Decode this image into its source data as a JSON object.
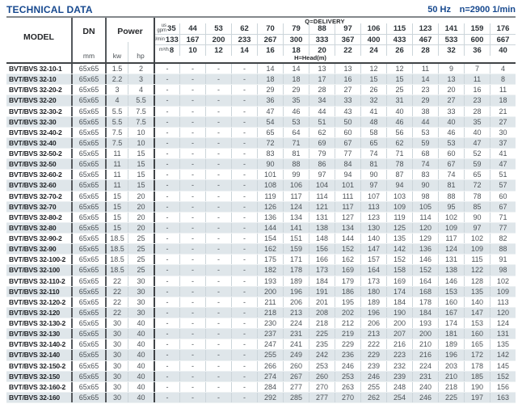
{
  "header_bar": {
    "title": "TECHNICAL DATA",
    "frequency": "50 Hz",
    "speed": "n=2900 1/min"
  },
  "table": {
    "columns": {
      "model": "MODEL",
      "dn": "DN",
      "dn_unit": "mm",
      "power": "Power",
      "kw": "kw",
      "hp": "hp"
    },
    "delivery_label": "Q=DELIVERY",
    "head_label": "H=Head(m)",
    "flow_rows": [
      {
        "unit_lines": [
          "us",
          "gpm"
        ],
        "values": [
          "35",
          "44",
          "53",
          "62",
          "70",
          "79",
          "88",
          "97",
          "106",
          "115",
          "123",
          "141",
          "159",
          "176"
        ]
      },
      {
        "unit_lines": [
          "l/min"
        ],
        "values": [
          "133",
          "167",
          "200",
          "233",
          "267",
          "300",
          "333",
          "367",
          "400",
          "433",
          "467",
          "533",
          "600",
          "667"
        ]
      },
      {
        "unit_lines": [
          "m³/h"
        ],
        "values": [
          "8",
          "10",
          "12",
          "14",
          "16",
          "18",
          "20",
          "22",
          "24",
          "26",
          "28",
          "32",
          "36",
          "40"
        ]
      }
    ],
    "rows": [
      {
        "model": "BVT/BVS 32-10-1",
        "dn": "65x65",
        "kw": "1.5",
        "hp": "2",
        "head": [
          "-",
          "-",
          "-",
          "-",
          "14",
          "14",
          "13",
          "13",
          "12",
          "12",
          "11",
          "9",
          "7",
          "4"
        ]
      },
      {
        "model": "BVT/BVS 32-10",
        "dn": "65x65",
        "kw": "2.2",
        "hp": "3",
        "head": [
          "-",
          "-",
          "-",
          "-",
          "18",
          "18",
          "17",
          "16",
          "15",
          "15",
          "14",
          "13",
          "11",
          "8"
        ]
      },
      {
        "model": "BVT/BVS 32-20-2",
        "dn": "65x65",
        "kw": "3",
        "hp": "4",
        "head": [
          "-",
          "-",
          "-",
          "-",
          "29",
          "29",
          "28",
          "27",
          "26",
          "25",
          "23",
          "20",
          "16",
          "11"
        ]
      },
      {
        "model": "BVT/BVS 32-20",
        "dn": "65x65",
        "kw": "4",
        "hp": "5.5",
        "head": [
          "-",
          "-",
          "-",
          "-",
          "36",
          "35",
          "34",
          "33",
          "32",
          "31",
          "29",
          "27",
          "23",
          "18"
        ]
      },
      {
        "model": "BVT/BVS 32-30-2",
        "dn": "65x65",
        "kw": "5.5",
        "hp": "7.5",
        "head": [
          "-",
          "-",
          "-",
          "-",
          "47",
          "46",
          "44",
          "43",
          "41",
          "40",
          "38",
          "33",
          "28",
          "21"
        ]
      },
      {
        "model": "BVT/BVS 32-30",
        "dn": "65x65",
        "kw": "5.5",
        "hp": "7.5",
        "head": [
          "-",
          "-",
          "-",
          "-",
          "54",
          "53",
          "51",
          "50",
          "48",
          "46",
          "44",
          "40",
          "35",
          "27"
        ]
      },
      {
        "model": "BVT/BVS 32-40-2",
        "dn": "65x65",
        "kw": "7.5",
        "hp": "10",
        "head": [
          "-",
          "-",
          "-",
          "-",
          "65",
          "64",
          "62",
          "60",
          "58",
          "56",
          "53",
          "46",
          "40",
          "30"
        ]
      },
      {
        "model": "BVT/BVS 32-40",
        "dn": "65x65",
        "kw": "7.5",
        "hp": "10",
        "head": [
          "-",
          "-",
          "-",
          "-",
          "72",
          "71",
          "69",
          "67",
          "65",
          "62",
          "59",
          "53",
          "47",
          "37"
        ]
      },
      {
        "model": "BVT/BVS 32-50-2",
        "dn": "65x65",
        "kw": "11",
        "hp": "15",
        "head": [
          "-",
          "-",
          "-",
          "-",
          "83",
          "81",
          "79",
          "77",
          "74",
          "71",
          "68",
          "60",
          "52",
          "41"
        ]
      },
      {
        "model": "BVT/BVS 32-50",
        "dn": "65x65",
        "kw": "11",
        "hp": "15",
        "head": [
          "-",
          "-",
          "-",
          "-",
          "90",
          "88",
          "86",
          "84",
          "81",
          "78",
          "74",
          "67",
          "59",
          "47"
        ]
      },
      {
        "model": "BVT/BVS 32-60-2",
        "dn": "65x65",
        "kw": "11",
        "hp": "15",
        "head": [
          "-",
          "-",
          "-",
          "-",
          "101",
          "99",
          "97",
          "94",
          "90",
          "87",
          "83",
          "74",
          "65",
          "51"
        ]
      },
      {
        "model": "BVT/BVS 32-60",
        "dn": "65x65",
        "kw": "11",
        "hp": "15",
        "head": [
          "-",
          "-",
          "-",
          "-",
          "108",
          "106",
          "104",
          "101",
          "97",
          "94",
          "90",
          "81",
          "72",
          "57"
        ]
      },
      {
        "model": "BVT/BVS 32-70-2",
        "dn": "65x65",
        "kw": "15",
        "hp": "20",
        "head": [
          "-",
          "-",
          "-",
          "-",
          "119",
          "117",
          "114",
          "111",
          "107",
          "103",
          "98",
          "88",
          "78",
          "60"
        ]
      },
      {
        "model": "BVT/BVS 32-70",
        "dn": "65x65",
        "kw": "15",
        "hp": "20",
        "head": [
          "-",
          "-",
          "-",
          "-",
          "126",
          "124",
          "121",
          "117",
          "113",
          "109",
          "105",
          "95",
          "85",
          "67"
        ]
      },
      {
        "model": "BVT/BVS 32-80-2",
        "dn": "65x65",
        "kw": "15",
        "hp": "20",
        "head": [
          "-",
          "-",
          "-",
          "-",
          "136",
          "134",
          "131",
          "127",
          "123",
          "119",
          "114",
          "102",
          "90",
          "71"
        ]
      },
      {
        "model": "BVT/BVS 32-80",
        "dn": "65x65",
        "kw": "15",
        "hp": "20",
        "head": [
          "-",
          "-",
          "-",
          "-",
          "144",
          "141",
          "138",
          "134",
          "130",
          "125",
          "120",
          "109",
          "97",
          "77"
        ]
      },
      {
        "model": "BVT/BVS 32-90-2",
        "dn": "65x65",
        "kw": "18.5",
        "hp": "25",
        "head": [
          "-",
          "-",
          "-",
          "-",
          "154",
          "151",
          "148",
          "144",
          "140",
          "135",
          "129",
          "117",
          "102",
          "82"
        ]
      },
      {
        "model": "BVT/BVS 32-90",
        "dn": "65x65",
        "kw": "18.5",
        "hp": "25",
        "head": [
          "-",
          "-",
          "-",
          "-",
          "162",
          "159",
          "156",
          "152",
          "147",
          "142",
          "136",
          "124",
          "109",
          "88"
        ]
      },
      {
        "model": "BVT/BVS 32-100-2",
        "dn": "65x65",
        "kw": "18.5",
        "hp": "25",
        "head": [
          "-",
          "-",
          "-",
          "-",
          "175",
          "171",
          "166",
          "162",
          "157",
          "152",
          "146",
          "131",
          "115",
          "91"
        ]
      },
      {
        "model": "BVT/BVS 32-100",
        "dn": "65x65",
        "kw": "18.5",
        "hp": "25",
        "head": [
          "-",
          "-",
          "-",
          "-",
          "182",
          "178",
          "173",
          "169",
          "164",
          "158",
          "152",
          "138",
          "122",
          "98"
        ]
      },
      {
        "model": "BVT/BVS 32-110-2",
        "dn": "65x65",
        "kw": "22",
        "hp": "30",
        "head": [
          "-",
          "-",
          "-",
          "-",
          "193",
          "189",
          "184",
          "179",
          "173",
          "169",
          "164",
          "146",
          "128",
          "102"
        ]
      },
      {
        "model": "BVT/BVS 32-110",
        "dn": "65x65",
        "kw": "22",
        "hp": "30",
        "head": [
          "-",
          "-",
          "-",
          "-",
          "200",
          "196",
          "191",
          "186",
          "180",
          "174",
          "168",
          "153",
          "135",
          "109"
        ]
      },
      {
        "model": "BVT/BVS 32-120-2",
        "dn": "65x65",
        "kw": "22",
        "hp": "30",
        "head": [
          "-",
          "-",
          "-",
          "-",
          "211",
          "206",
          "201",
          "195",
          "189",
          "184",
          "178",
          "160",
          "140",
          "113"
        ]
      },
      {
        "model": "BVT/BVS 32-120",
        "dn": "65x65",
        "kw": "22",
        "hp": "30",
        "head": [
          "-",
          "-",
          "-",
          "-",
          "218",
          "213",
          "208",
          "202",
          "196",
          "190",
          "184",
          "167",
          "147",
          "120"
        ]
      },
      {
        "model": "BVT/BVS 32-130-2",
        "dn": "65x65",
        "kw": "30",
        "hp": "40",
        "head": [
          "-",
          "-",
          "-",
          "-",
          "230",
          "224",
          "218",
          "212",
          "206",
          "200",
          "193",
          "174",
          "153",
          "124"
        ]
      },
      {
        "model": "BVT/BVS 32-130",
        "dn": "65x65",
        "kw": "30",
        "hp": "40",
        "head": [
          "-",
          "-",
          "-",
          "-",
          "237",
          "231",
          "225",
          "219",
          "213",
          "207",
          "200",
          "181",
          "160",
          "131"
        ]
      },
      {
        "model": "BVT/BVS 32-140-2",
        "dn": "65x65",
        "kw": "30",
        "hp": "40",
        "head": [
          "-",
          "-",
          "-",
          "-",
          "247",
          "241",
          "235",
          "229",
          "222",
          "216",
          "210",
          "189",
          "165",
          "135"
        ]
      },
      {
        "model": "BVT/BVS 32-140",
        "dn": "65x65",
        "kw": "30",
        "hp": "40",
        "head": [
          "-",
          "-",
          "-",
          "-",
          "255",
          "249",
          "242",
          "236",
          "229",
          "223",
          "216",
          "196",
          "172",
          "142"
        ]
      },
      {
        "model": "BVT/BVS 32-150-2",
        "dn": "65x65",
        "kw": "30",
        "hp": "40",
        "head": [
          "-",
          "-",
          "-",
          "-",
          "266",
          "260",
          "253",
          "246",
          "239",
          "232",
          "224",
          "203",
          "178",
          "145"
        ]
      },
      {
        "model": "BVT/BVS 32-150",
        "dn": "65x65",
        "kw": "30",
        "hp": "40",
        "head": [
          "-",
          "-",
          "-",
          "-",
          "274",
          "267",
          "260",
          "253",
          "246",
          "239",
          "231",
          "210",
          "185",
          "152"
        ]
      },
      {
        "model": "BVT/BVS 32-160-2",
        "dn": "65x65",
        "kw": "30",
        "hp": "40",
        "head": [
          "-",
          "-",
          "-",
          "-",
          "284",
          "277",
          "270",
          "263",
          "255",
          "248",
          "240",
          "218",
          "190",
          "156"
        ]
      },
      {
        "model": "BVT/BVS 32-160",
        "dn": "65x65",
        "kw": "30",
        "hp": "40",
        "head": [
          "-",
          "-",
          "-",
          "-",
          "292",
          "285",
          "277",
          "270",
          "262",
          "254",
          "246",
          "225",
          "197",
          "163"
        ]
      }
    ]
  }
}
